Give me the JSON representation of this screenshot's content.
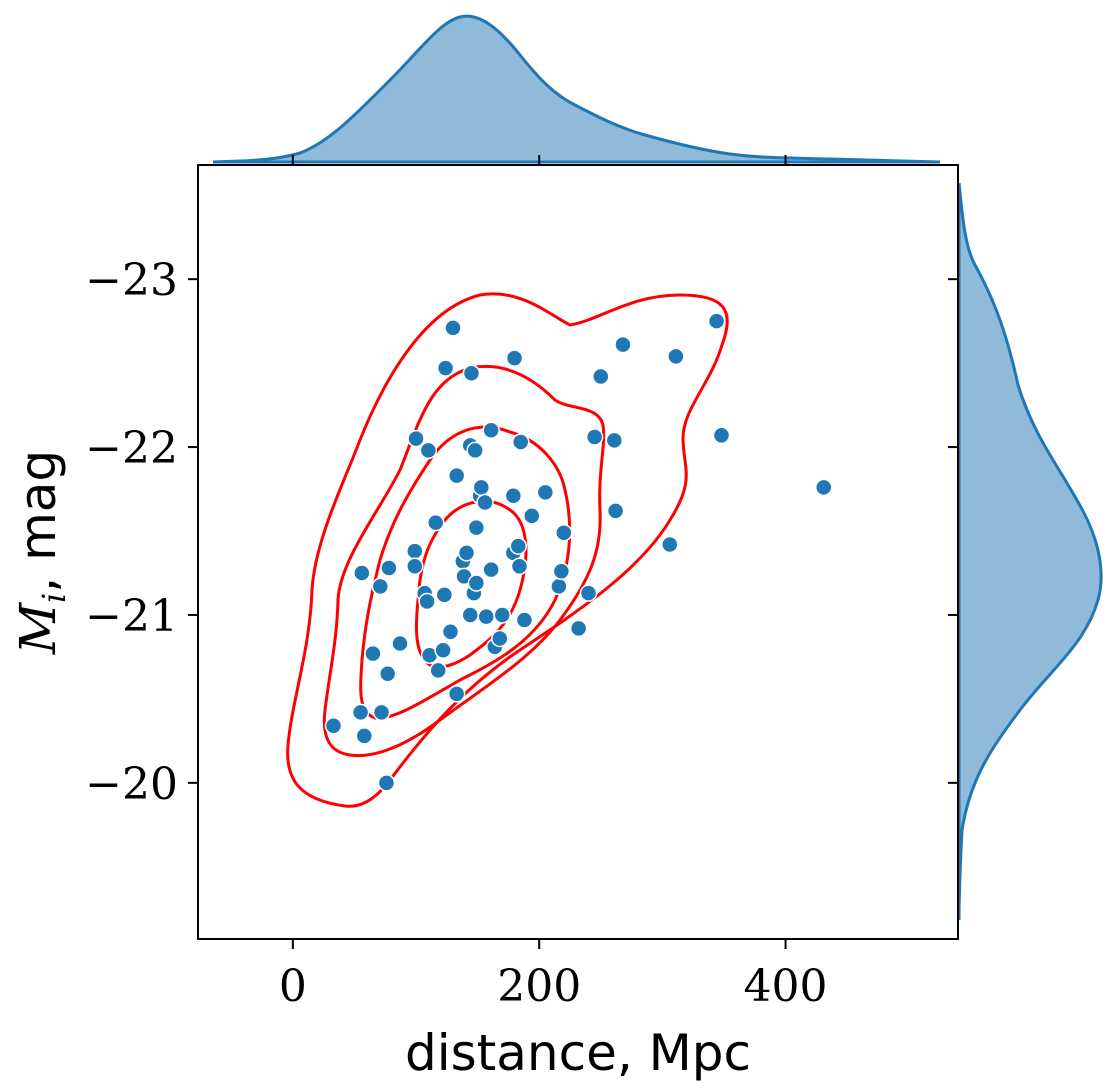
{
  "chart_data": {
    "type": "scatter",
    "title": "",
    "xlabel": "distance, Mpc",
    "ylabel": "M_i, mag",
    "ylabel_parts": {
      "symbol": "M",
      "subscript": "i",
      "suffix": ", mag"
    },
    "xlim": [
      -77,
      540
    ],
    "ylim": [
      -19.07,
      -23.68
    ],
    "y_inverted": true,
    "x_ticks": [
      0,
      200,
      400
    ],
    "x_tick_labels": [
      "0",
      "200",
      "400"
    ],
    "y_ticks": [
      -23,
      -22,
      -21,
      -20
    ],
    "y_tick_labels": [
      "−23",
      "−22",
      "−21",
      "−20"
    ],
    "grid": false,
    "legend": "none",
    "colors": {
      "points": "#1f77b4",
      "contours": "#ff0000",
      "marginal_fill": "#8fbad9",
      "marginal_line": "#1f77b4"
    },
    "points": [
      [
        33,
        -20.34
      ],
      [
        55,
        -20.42
      ],
      [
        58,
        -20.28
      ],
      [
        56,
        -21.25
      ],
      [
        65,
        -20.77
      ],
      [
        71,
        -21.17
      ],
      [
        72,
        -20.42
      ],
      [
        77,
        -20.65
      ],
      [
        78,
        -21.28
      ],
      [
        76,
        -20.0
      ],
      [
        87,
        -20.83
      ],
      [
        99,
        -21.38
      ],
      [
        99,
        -21.29
      ],
      [
        100,
        -22.05
      ],
      [
        107,
        -21.13
      ],
      [
        109,
        -21.08
      ],
      [
        110,
        -21.98
      ],
      [
        111,
        -20.76
      ],
      [
        116,
        -21.55
      ],
      [
        118,
        -20.67
      ],
      [
        122,
        -20.79
      ],
      [
        124,
        -22.47
      ],
      [
        123,
        -21.12
      ],
      [
        128,
        -20.9
      ],
      [
        130,
        -22.71
      ],
      [
        133,
        -21.83
      ],
      [
        133,
        -20.53
      ],
      [
        138,
        -21.32
      ],
      [
        139,
        -21.23
      ],
      [
        141,
        -21.37
      ],
      [
        144,
        -21.0
      ],
      [
        144,
        -22.01
      ],
      [
        145,
        -22.44
      ],
      [
        147,
        -21.13
      ],
      [
        149,
        -21.19
      ],
      [
        149,
        -21.52
      ],
      [
        148,
        -21.98
      ],
      [
        152,
        -21.71
      ],
      [
        153,
        -21.76
      ],
      [
        156,
        -21.67
      ],
      [
        157,
        -20.99
      ],
      [
        161,
        -21.27
      ],
      [
        161,
        -22.1
      ],
      [
        164,
        -20.81
      ],
      [
        168,
        -20.86
      ],
      [
        170,
        -21.0
      ],
      [
        179,
        -21.71
      ],
      [
        179,
        -21.37
      ],
      [
        180,
        -22.53
      ],
      [
        183,
        -21.41
      ],
      [
        184,
        -21.29
      ],
      [
        185,
        -22.03
      ],
      [
        188,
        -20.97
      ],
      [
        194,
        -21.59
      ],
      [
        205,
        -21.73
      ],
      [
        216,
        -21.17
      ],
      [
        218,
        -21.26
      ],
      [
        220,
        -21.49
      ],
      [
        232,
        -20.92
      ],
      [
        240,
        -21.13
      ],
      [
        245,
        -22.06
      ],
      [
        250,
        -22.42
      ],
      [
        261,
        -22.04
      ],
      [
        262,
        -21.62
      ],
      [
        268,
        -22.61
      ],
      [
        306,
        -21.42
      ],
      [
        311,
        -22.54
      ],
      [
        344,
        -22.75
      ],
      [
        348,
        -22.07
      ],
      [
        431,
        -21.76
      ]
    ],
    "contour_levels": 4,
    "marginals": {
      "top": "kde of distance",
      "right": "kde of M_i"
    }
  }
}
